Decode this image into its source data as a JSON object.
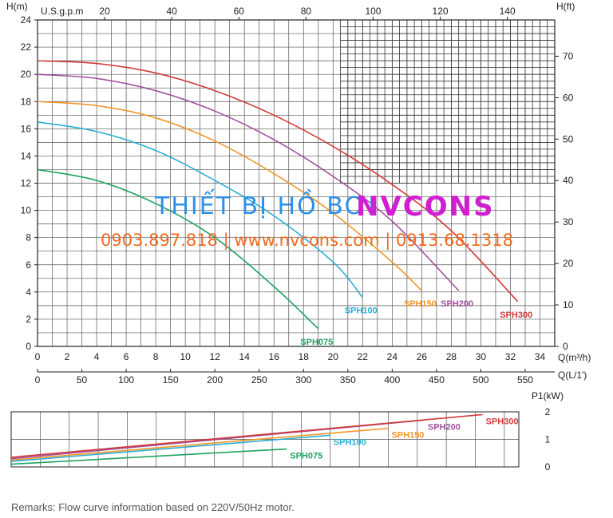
{
  "watermark": {
    "brand_prefix": "THIẾT BỊ HỒ BƠI",
    "brand_name": "NVCONS",
    "contact_line": "0903.897.818 | www.nvcons.com | 0913.68.1318"
  },
  "remarks": "Remarks: Flow curve information based on 220V/50Hz motor.",
  "colors": {
    "SPH075": "#1fa362",
    "SPH100": "#2aaed6",
    "SPH150": "#f0962a",
    "SPH200": "#a0509b",
    "SPH300": "#d23c3c"
  },
  "chart_data": [
    {
      "type": "line",
      "title": "",
      "x": {
        "label": "Q(m³/h)",
        "range": [
          0,
          35
        ],
        "ticks": [
          0,
          2,
          4,
          6,
          8,
          10,
          12,
          14,
          16,
          18,
          20,
          22,
          24,
          26,
          28,
          30,
          32,
          34
        ]
      },
      "x_secondary_bottom": {
        "label": "Q(L/1')",
        "ticks": [
          0,
          50,
          100,
          150,
          200,
          250,
          300,
          350,
          400,
          450,
          500,
          550
        ]
      },
      "x_secondary_top": {
        "label": "U.S.g.p.m",
        "ticks": [
          20,
          40,
          60,
          80,
          100,
          120,
          140
        ]
      },
      "y": {
        "label": "H(m)",
        "range": [
          0,
          24
        ],
        "ticks": [
          0,
          2,
          4,
          6,
          8,
          10,
          12,
          14,
          16,
          18,
          20,
          22,
          24
        ]
      },
      "y_right": {
        "label": "H(ft)",
        "ticks": [
          0,
          10,
          20,
          30,
          40,
          50,
          60,
          70
        ]
      },
      "grid": true,
      "series": [
        {
          "name": "SPH075",
          "x": [
            0,
            4,
            8,
            12,
            16,
            19
          ],
          "y": [
            13,
            12.2,
            10.5,
            8,
            4.4,
            1.3
          ]
        },
        {
          "name": "SPH100",
          "x": [
            0,
            4,
            8,
            12,
            16,
            20,
            22
          ],
          "y": [
            16.5,
            15.8,
            14.4,
            12.2,
            9.6,
            6.2,
            3.6
          ]
        },
        {
          "name": "SPH150",
          "x": [
            0,
            4,
            8,
            12,
            16,
            20,
            24,
            26
          ],
          "y": [
            18,
            17.7,
            16.8,
            15.1,
            12.7,
            9.8,
            6.2,
            4.1
          ]
        },
        {
          "name": "SPH200",
          "x": [
            0,
            4,
            8,
            12,
            16,
            20,
            24,
            28.5
          ],
          "y": [
            20,
            19.7,
            18.8,
            17.3,
            15.2,
            12.5,
            9.2,
            4.1
          ]
        },
        {
          "name": "SPH300",
          "x": [
            0,
            4,
            8,
            12,
            16,
            20,
            24,
            28,
            32.5
          ],
          "y": [
            21,
            20.8,
            20.1,
            18.8,
            17,
            14.7,
            11.9,
            8.5,
            3.3
          ]
        }
      ]
    },
    {
      "type": "line",
      "title": "",
      "y": {
        "label": "P1(kW)",
        "range": [
          0,
          2
        ],
        "ticks": [
          0,
          1,
          2
        ]
      },
      "x": {
        "range": [
          0,
          35
        ]
      },
      "grid": true,
      "series": [
        {
          "name": "SPH075",
          "x": [
            0,
            19
          ],
          "y": [
            0.1,
            0.65
          ]
        },
        {
          "name": "SPH100",
          "x": [
            0,
            22
          ],
          "y": [
            0.2,
            1.15
          ]
        },
        {
          "name": "SPH150",
          "x": [
            0,
            26
          ],
          "y": [
            0.25,
            1.4
          ]
        },
        {
          "name": "SPH200",
          "x": [
            0,
            28.5
          ],
          "y": [
            0.3,
            1.7
          ]
        },
        {
          "name": "SPH300",
          "x": [
            0,
            32.5
          ],
          "y": [
            0.35,
            1.9
          ]
        }
      ]
    }
  ]
}
